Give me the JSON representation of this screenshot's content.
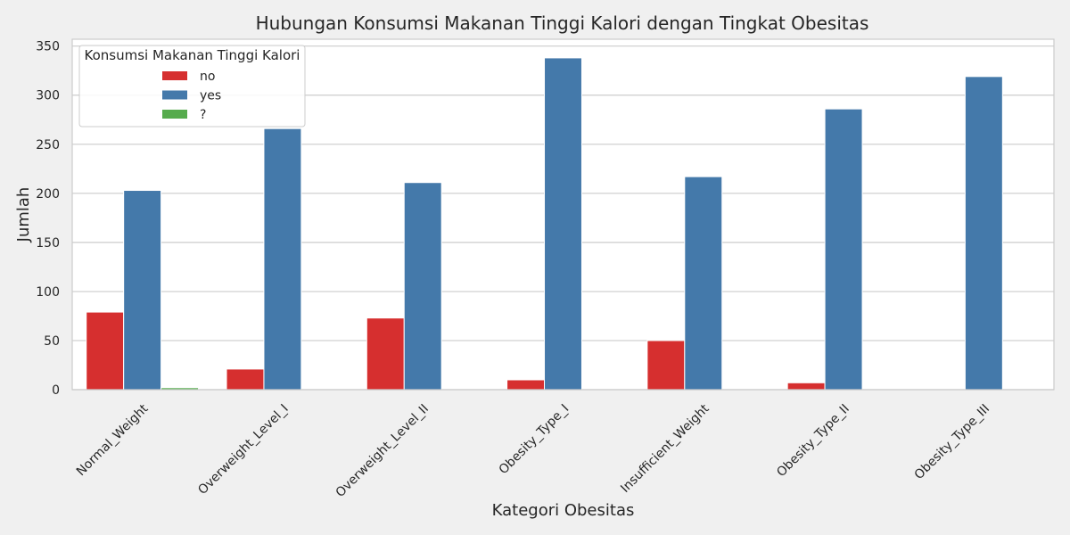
{
  "chart_data": {
    "type": "bar",
    "title": "Hubungan Konsumsi Makanan Tinggi Kalori dengan Tingkat Obesitas",
    "xlabel": "Kategori Obesitas",
    "ylabel": "Jumlah",
    "categories": [
      "Normal_Weight",
      "Overweight_Level_I",
      "Overweight_Level_II",
      "Obesity_Type_I",
      "Insufficient_Weight",
      "Obesity_Type_II",
      "Obesity_Type_III"
    ],
    "yticks": [
      0,
      50,
      100,
      150,
      200,
      250,
      300,
      350
    ],
    "ylim": [
      0,
      357
    ],
    "grid": true,
    "legend": {
      "title": "Konsumsi Makanan Tinggi Kalori",
      "placement": "top-left"
    },
    "series": [
      {
        "name": "no",
        "color": "#d62f2f",
        "values": [
          79,
          21,
          73,
          10,
          50,
          7,
          0
        ]
      },
      {
        "name": "yes",
        "color": "#4479aa",
        "values": [
          203,
          266,
          211,
          338,
          217,
          286,
          319
        ]
      },
      {
        "name": "?",
        "color": "#56ab4d",
        "values": [
          2,
          0,
          0,
          0,
          0,
          0,
          0
        ]
      }
    ]
  }
}
